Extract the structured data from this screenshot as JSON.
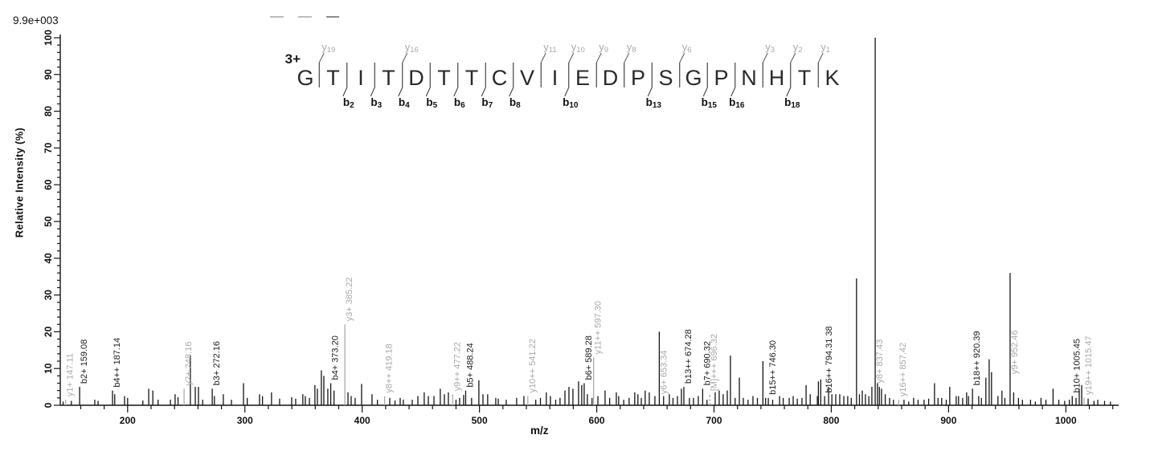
{
  "header": {
    "intensity_scale": "9.9e+003"
  },
  "axes": {
    "x": {
      "label": "m/z",
      "min": 143,
      "max": 1043,
      "major_ticks": [
        200,
        300,
        400,
        500,
        600,
        700,
        800,
        900,
        1000
      ],
      "minor_step": 20
    },
    "y": {
      "label": "Relative  Intensity (%)",
      "min": 0,
      "max": 100,
      "major_ticks": [
        0,
        10,
        20,
        30,
        40,
        50,
        60,
        70,
        80,
        90,
        100
      ],
      "minor_step": 2
    }
  },
  "peptide": {
    "charge": "3+",
    "sequence": [
      "G",
      "T",
      "I",
      "T",
      "D",
      "T",
      "T",
      "C",
      "V",
      "I",
      "E",
      "D",
      "P",
      "S",
      "G",
      "P",
      "N",
      "H",
      "T",
      "K"
    ],
    "y_ions": [
      {
        "name": "y",
        "num": "19",
        "gap": 1
      },
      {
        "name": "y",
        "num": "16",
        "gap": 4
      },
      {
        "name": "y",
        "num": "11",
        "gap": 9
      },
      {
        "name": "y",
        "num": "10",
        "gap": 10
      },
      {
        "name": "y",
        "num": "9",
        "gap": 11
      },
      {
        "name": "y",
        "num": "8",
        "gap": 12
      },
      {
        "name": "y",
        "num": "6",
        "gap": 14
      },
      {
        "name": "y",
        "num": "3",
        "gap": 17
      },
      {
        "name": "y",
        "num": "2",
        "gap": 18
      },
      {
        "name": "y",
        "num": "1",
        "gap": 19
      }
    ],
    "b_ions": [
      {
        "name": "b",
        "num": "2",
        "gap": 2
      },
      {
        "name": "b",
        "num": "3",
        "gap": 3
      },
      {
        "name": "b",
        "num": "4",
        "gap": 4
      },
      {
        "name": "b",
        "num": "5",
        "gap": 5
      },
      {
        "name": "b",
        "num": "6",
        "gap": 6
      },
      {
        "name": "b",
        "num": "7",
        "gap": 7
      },
      {
        "name": "b",
        "num": "8",
        "gap": 8
      },
      {
        "name": "b",
        "num": "10",
        "gap": 10
      },
      {
        "name": "b",
        "num": "13",
        "gap": 13
      },
      {
        "name": "b",
        "num": "15",
        "gap": 15
      },
      {
        "name": "b",
        "num": "16",
        "gap": 16
      },
      {
        "name": "b",
        "num": "18",
        "gap": 18
      }
    ]
  },
  "chart_data": {
    "type": "bar",
    "subtype": "ms2-stick-spectrum",
    "title": "",
    "xlabel": "m/z",
    "ylabel": "Relative  Intensity (%)",
    "xlim": [
      143,
      1043
    ],
    "ylim": [
      0,
      100
    ],
    "grid": false,
    "colors": {
      "b_ion": "#141414",
      "y_ion_label": "#a9a9a9",
      "gray_peak": "#ababab",
      "black_peak": "#141414"
    },
    "labeled_peaks": [
      {
        "text": "y1+ 147.11",
        "mz": 147.11,
        "intensity": 1.5,
        "gray": true,
        "grayLine": true
      },
      {
        "text": "b2+ 159.08",
        "mz": 159.08,
        "intensity": 5,
        "gray": false
      },
      {
        "text": "b4++ 187.14",
        "mz": 187.14,
        "intensity": 4,
        "gray": false
      },
      {
        "text": "y2+ 248.16",
        "mz": 248.16,
        "intensity": 4.5,
        "gray": true,
        "grayLine": true
      },
      {
        "text": "b3+ 272.16",
        "mz": 272.16,
        "intensity": 4.5,
        "gray": false
      },
      {
        "text": "b4+ 373.20",
        "mz": 373.2,
        "intensity": 6,
        "gray": false
      },
      {
        "text": "y3+ 385.22",
        "mz": 385.22,
        "intensity": 22,
        "gray": true,
        "grayLine": true
      },
      {
        "text": "y8++ 419.18",
        "mz": 419.18,
        "intensity": 2.5,
        "gray": true,
        "grayLine": true
      },
      {
        "text": "y9++ 477.22",
        "mz": 477.22,
        "intensity": 3,
        "gray": true,
        "grayLine": true
      },
      {
        "text": "b5+ 488.24",
        "mz": 488.24,
        "intensity": 4,
        "gray": false
      },
      {
        "text": "y10++ 541.22",
        "mz": 541.22,
        "intensity": 2.5,
        "gray": true,
        "grayLine": true
      },
      {
        "text": "b6+ 589.28",
        "mz": 589.28,
        "intensity": 6,
        "gray": false
      },
      {
        "text": "y11++ 597.30",
        "mz": 597.3,
        "intensity": 13,
        "gray": true,
        "grayLine": true
      },
      {
        "text": "y6+ 653.34",
        "mz": 653.34,
        "intensity": 20,
        "gray": true,
        "grayLine": false,
        "labelBottomPct": 3
      },
      {
        "text": "b13++ 674.28",
        "mz": 674.28,
        "intensity": 5,
        "gray": false
      },
      {
        "text": "b7+ 690.32",
        "mz": 690.32,
        "intensity": 4.5,
        "gray": false
      },
      {
        "text": "[M]+++ 696.32",
        "mz": 696.32,
        "intensity": 3,
        "gray": true,
        "grayLine": true,
        "dashed": true
      },
      {
        "text": "b15++ 746.30",
        "mz": 746.3,
        "intensity": 2,
        "gray": false
      },
      {
        "text": "b16++ 794.31 38",
        "mz": 794.31,
        "intensity": 2.5,
        "gray": false
      },
      {
        "text": "y8+ 837.43",
        "mz": 837.43,
        "intensity": 100,
        "gray": true,
        "grayLine": false,
        "labelBottomPct": 6
      },
      {
        "text": "y16++ 857.42",
        "mz": 857.42,
        "intensity": 1.5,
        "gray": true,
        "grayLine": true
      },
      {
        "text": "b18++ 920.39",
        "mz": 920.39,
        "intensity": 4.5,
        "gray": false
      },
      {
        "text": "y9+ 952.46",
        "mz": 952.46,
        "intensity": 36,
        "gray": true,
        "grayLine": false,
        "labelBottomPct": 8.5
      },
      {
        "text": "b10+ 1005.45",
        "mz": 1005.45,
        "intensity": 2.5,
        "gray": false
      },
      {
        "text": "y19++ 1015.47",
        "mz": 1015.47,
        "intensity": 2,
        "gray": true,
        "grayLine": true
      }
    ],
    "background_peaks": [
      [
        145,
        1
      ],
      [
        152,
        1.2
      ],
      [
        172,
        1.5
      ],
      [
        174.8,
        1.2
      ],
      [
        189,
        3
      ],
      [
        197.4,
        2.5
      ],
      [
        200,
        2
      ],
      [
        213,
        1.3
      ],
      [
        218,
        4.5
      ],
      [
        221.5,
        4
      ],
      [
        226,
        1.5
      ],
      [
        236.5,
        1.5
      ],
      [
        240.5,
        3
      ],
      [
        243,
        2.2
      ],
      [
        253.5,
        13.5
      ],
      [
        257.7,
        5
      ],
      [
        260.4,
        5
      ],
      [
        264,
        1.5
      ],
      [
        274,
        2.5
      ],
      [
        281.6,
        3
      ],
      [
        288.5,
        1.5
      ],
      [
        298.8,
        6
      ],
      [
        302,
        2
      ],
      [
        312.5,
        3
      ],
      [
        315,
        2.5
      ],
      [
        322.7,
        3.5
      ],
      [
        329.6,
        1.8
      ],
      [
        339.9,
        2.2
      ],
      [
        343.3,
        1.8
      ],
      [
        349.4,
        3
      ],
      [
        351.5,
        2.5
      ],
      [
        355,
        2
      ],
      [
        359.7,
        5.5
      ],
      [
        361.8,
        4.5
      ],
      [
        365.2,
        9.5
      ],
      [
        367.3,
        8
      ],
      [
        370.7,
        4.5
      ],
      [
        376,
        4
      ],
      [
        387.9,
        3.5
      ],
      [
        390.6,
        2.5
      ],
      [
        394,
        2
      ],
      [
        399.5,
        5.8
      ],
      [
        408.4,
        3
      ],
      [
        413,
        1.5
      ],
      [
        423.5,
        2
      ],
      [
        428,
        1.3
      ],
      [
        432.4,
        2
      ],
      [
        435.1,
        1.5
      ],
      [
        442.7,
        1.5
      ],
      [
        447.5,
        2.5
      ],
      [
        452.9,
        3.5
      ],
      [
        456.4,
        2.5
      ],
      [
        461.2,
        2.5
      ],
      [
        466.6,
        4.5
      ],
      [
        470.1,
        3
      ],
      [
        473.5,
        3.5
      ],
      [
        480,
        1.5
      ],
      [
        483.1,
        2
      ],
      [
        486.5,
        2.8
      ],
      [
        493.3,
        2
      ],
      [
        499.5,
        6.8
      ],
      [
        503,
        3
      ],
      [
        507,
        3
      ],
      [
        513.9,
        2
      ],
      [
        516,
        1.8
      ],
      [
        522.8,
        1.5
      ],
      [
        531.7,
        2
      ],
      [
        537.9,
        2.5
      ],
      [
        548,
        1.5
      ],
      [
        552,
        2
      ],
      [
        557,
        3.5
      ],
      [
        560.5,
        2.5
      ],
      [
        565,
        1.5
      ],
      [
        568.7,
        2
      ],
      [
        572.9,
        4
      ],
      [
        576.3,
        5
      ],
      [
        579.7,
        4.5
      ],
      [
        584.5,
        6.5
      ],
      [
        587.2,
        5.5
      ],
      [
        592,
        3
      ],
      [
        596,
        2
      ],
      [
        601,
        2.5
      ],
      [
        607.1,
        4
      ],
      [
        611,
        2
      ],
      [
        616.7,
        3.5
      ],
      [
        618.7,
        2.5
      ],
      [
        623,
        1.5
      ],
      [
        627.6,
        2
      ],
      [
        632.4,
        3.5
      ],
      [
        635.1,
        3
      ],
      [
        638,
        2
      ],
      [
        641.3,
        4
      ],
      [
        644.8,
        3.5
      ],
      [
        649.6,
        2.5
      ],
      [
        657,
        2.5
      ],
      [
        661.9,
        3
      ],
      [
        665,
        2
      ],
      [
        668.8,
        2.5
      ],
      [
        672.2,
        4.5
      ],
      [
        679,
        2
      ],
      [
        682.5,
        2
      ],
      [
        686.6,
        2.5
      ],
      [
        694,
        1.5
      ],
      [
        701,
        3.5
      ],
      [
        704.4,
        4
      ],
      [
        707.8,
        3
      ],
      [
        711.3,
        4
      ],
      [
        714,
        13.5
      ],
      [
        718,
        2
      ],
      [
        721.6,
        7.5
      ],
      [
        725,
        2
      ],
      [
        729,
        1.5
      ],
      [
        733.2,
        2.5
      ],
      [
        737,
        2
      ],
      [
        741.7,
        12
      ],
      [
        744,
        2
      ],
      [
        750,
        1.5
      ],
      [
        755.9,
        2.5
      ],
      [
        759,
        2
      ],
      [
        764.1,
        2
      ],
      [
        767.5,
        2.5
      ],
      [
        771,
        1.8
      ],
      [
        775,
        2
      ],
      [
        778.5,
        5.5
      ],
      [
        782,
        3
      ],
      [
        788.1,
        2.5
      ],
      [
        789,
        6.5
      ],
      [
        791,
        7
      ],
      [
        797.7,
        5
      ],
      [
        800.5,
        3
      ],
      [
        803.8,
        3
      ],
      [
        807.2,
        3
      ],
      [
        810.7,
        2.5
      ],
      [
        814,
        2.5
      ],
      [
        817,
        2
      ],
      [
        821.5,
        34.5
      ],
      [
        824,
        3
      ],
      [
        826.4,
        4
      ],
      [
        829.1,
        3
      ],
      [
        832,
        2.5
      ],
      [
        834.6,
        5
      ],
      [
        839.4,
        6
      ],
      [
        841,
        5
      ],
      [
        842.8,
        4.5
      ],
      [
        846,
        3
      ],
      [
        849.7,
        2
      ],
      [
        853,
        1.5
      ],
      [
        862,
        1.5
      ],
      [
        866,
        1
      ],
      [
        870.2,
        2
      ],
      [
        874,
        1.5
      ],
      [
        879.1,
        1.5
      ],
      [
        883,
        1.8
      ],
      [
        888,
        6
      ],
      [
        891,
        2
      ],
      [
        894.1,
        2
      ],
      [
        898,
        1.5
      ],
      [
        901,
        5
      ],
      [
        906.5,
        2.5
      ],
      [
        908.5,
        2.5
      ],
      [
        912,
        2
      ],
      [
        915.4,
        3.5
      ],
      [
        917,
        2.5
      ],
      [
        925.7,
        2.5
      ],
      [
        928,
        2
      ],
      [
        931.8,
        7.5
      ],
      [
        934.6,
        12.5
      ],
      [
        936.6,
        9
      ],
      [
        942.1,
        2.5
      ],
      [
        945.5,
        4
      ],
      [
        948,
        2
      ],
      [
        955.5,
        3.5
      ],
      [
        959.6,
        2
      ],
      [
        963,
        1.5
      ],
      [
        969.9,
        1.5
      ],
      [
        974,
        1
      ],
      [
        978.8,
        2
      ],
      [
        983,
        1.5
      ],
      [
        989.1,
        4.5
      ],
      [
        994,
        1.5
      ],
      [
        999,
        1.2
      ],
      [
        1003,
        1.5
      ],
      [
        1008.7,
        2
      ],
      [
        1011.4,
        4.5
      ],
      [
        1013.5,
        5.5
      ],
      [
        1019,
        1.8
      ],
      [
        1024,
        1.2
      ],
      [
        1027.2,
        1.5
      ],
      [
        1033,
        1.2
      ],
      [
        1038,
        1
      ]
    ]
  }
}
